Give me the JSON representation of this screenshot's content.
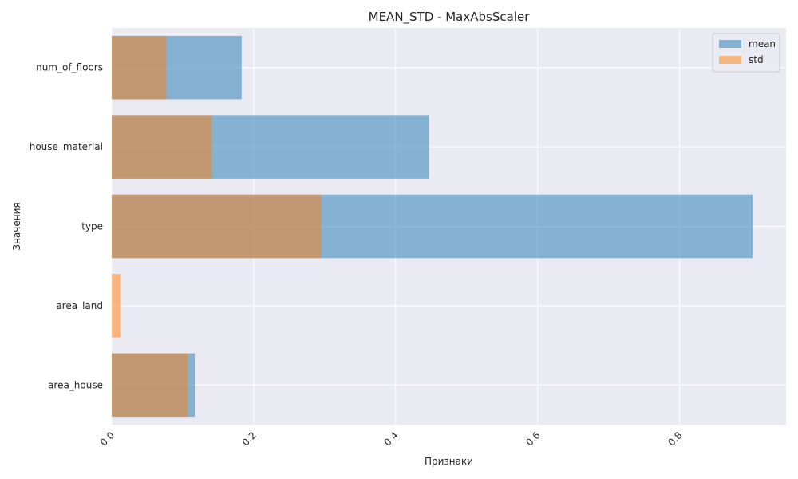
{
  "chart_data": {
    "type": "bar",
    "orientation": "horizontal",
    "title": "MEAN_STD - MaxAbsScaler",
    "xlabel": "Признаки",
    "ylabel": "Значения",
    "categories": [
      "area_house",
      "area_land",
      "type",
      "house_material",
      "num_of_floors"
    ],
    "series": [
      {
        "name": "mean",
        "values": [
          0.117,
          0.0,
          0.903,
          0.447,
          0.183
        ],
        "color": "#1f77b4"
      },
      {
        "name": "std",
        "values": [
          0.107,
          0.013,
          0.295,
          0.141,
          0.077
        ],
        "color": "#ff7f0e"
      }
    ],
    "xlim": [
      0.0,
      0.95
    ],
    "xticks": [
      0.0,
      0.2,
      0.4,
      0.6,
      0.8
    ],
    "xtick_labels": [
      "0.0",
      "0.2",
      "0.4",
      "0.6",
      "0.8"
    ],
    "xtick_rotation": 45,
    "grid": true,
    "legend_position": "top-right",
    "bar_opacity": 0.5,
    "background": "#eaeaf2",
    "grid_color": "#ffffff"
  }
}
